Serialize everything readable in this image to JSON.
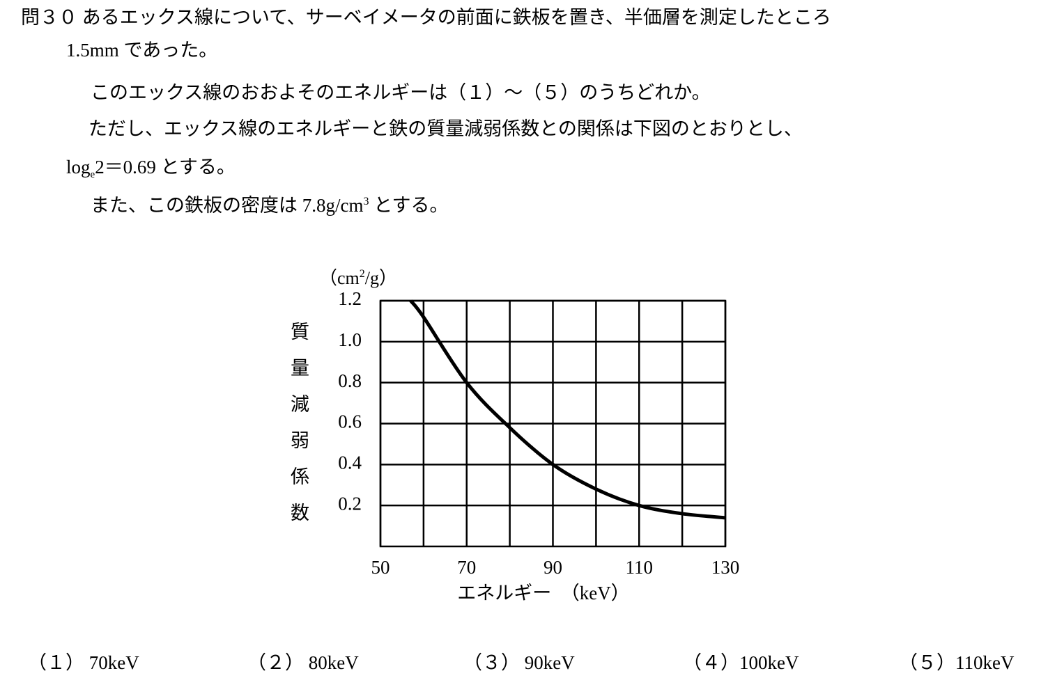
{
  "question": {
    "lines": [
      {
        "parts": [
          "問３０ あるエックス線について、サーベイメータの前面に鉄板を置き、半価層を測定したところ"
        ]
      },
      {
        "parts": [
          "1.5mm であった。"
        ]
      },
      {
        "parts": [
          "このエックス線のおおよそのエネルギーは（１）～（５）のうちどれか。"
        ]
      },
      {
        "parts": [
          "ただし、エックス線のエネルギーと鉄の質量減弱係数との関係は下図のとおりとし、"
        ]
      },
      {
        "parts": [
          "log",
          "e",
          "2＝0.69 とする。"
        ]
      },
      {
        "parts": [
          "また、この鉄板の密度は 7.8g/cm",
          "3",
          " とする。"
        ]
      }
    ],
    "options": [
      "（１） 70keV",
      "（２） 80keV",
      "（３） 90keV",
      "（４）100keV",
      "（５）110keV"
    ]
  },
  "chart_data": {
    "type": "line",
    "y_label": "質量減弱係数",
    "y_unit_parts": [
      "（cm",
      "2",
      "/g）"
    ],
    "x_label": "エネルギー　（keV）",
    "x": [
      57,
      60,
      70,
      80,
      90,
      100,
      110,
      120,
      130
    ],
    "series": [
      {
        "color": "#000000",
        "values": [
          1.2,
          1.12,
          0.8,
          0.58,
          0.4,
          0.28,
          0.2,
          0.16,
          0.14
        ]
      }
    ],
    "xlim": [
      50,
      130
    ],
    "xticks": [
      50,
      70,
      90,
      110,
      130
    ],
    "xminor": [
      60,
      80,
      100,
      120
    ],
    "ylim": [
      0,
      1.2
    ],
    "yticks": [
      0.2,
      0.4,
      0.6,
      0.8,
      {
        "value": 1,
        "label": "1.0"
      },
      1.2
    ],
    "grid": true
  }
}
